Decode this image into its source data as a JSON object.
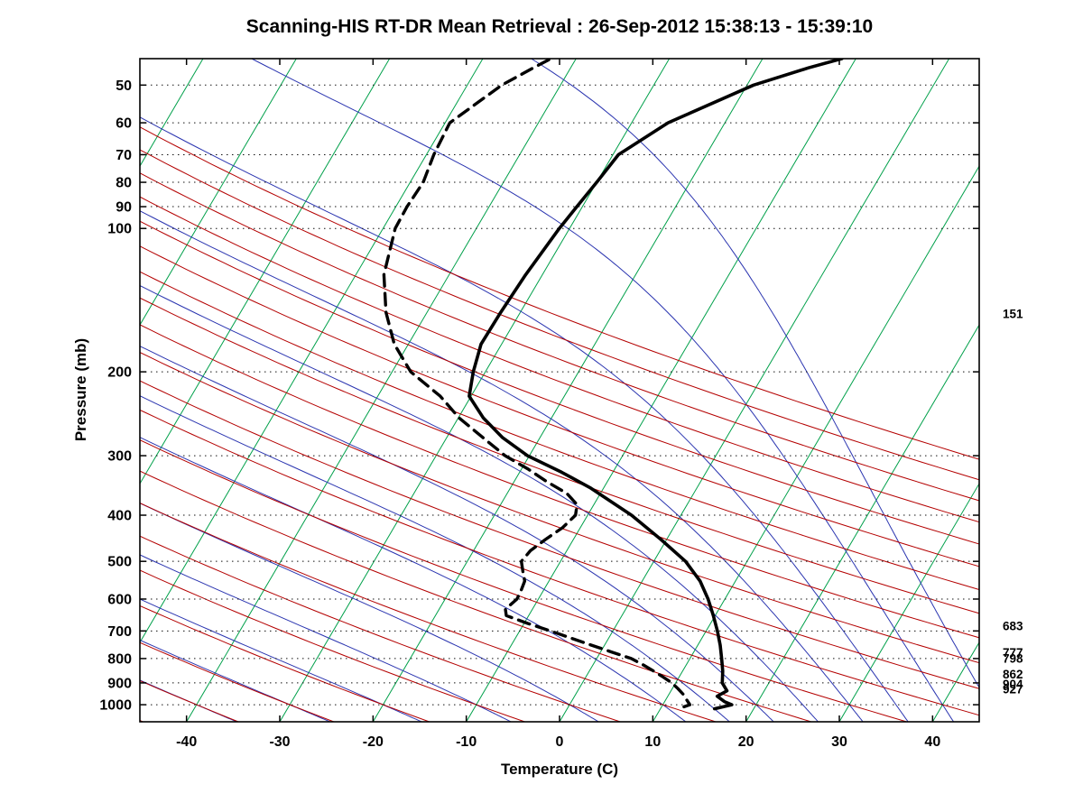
{
  "title": "Scanning-HIS RT-DR Mean Retrieval : 26-Sep-2012 15:38:13 - 15:39:10",
  "chart_data": {
    "type": "line",
    "chart_kind": "skew-t-log-p-sounding",
    "title": "Scanning-HIS RT-DR Mean Retrieval : 26-Sep-2012 15:38:13 - 15:39:10",
    "xlabel": "Temperature (C)",
    "ylabel": "Pressure (mb)",
    "x_ticks": [
      -40,
      -30,
      -20,
      -10,
      0,
      10,
      20,
      30,
      40
    ],
    "pressure_ticks": [
      50,
      60,
      70,
      80,
      90,
      100,
      200,
      300,
      400,
      500,
      600,
      700,
      800,
      900,
      1000
    ],
    "t_range": [
      -45,
      45
    ],
    "p_range": [
      44,
      1086
    ],
    "skew_c_per_decade": 30,
    "grid": "dotted horizontal lines at pressure ticks",
    "background": {
      "isotherms": {
        "color": "#00a04a",
        "min": -90,
        "max": 40,
        "step": 10
      },
      "dry_adiabats": {
        "color": "#b40000",
        "theta_min": -80,
        "theta_max": 150,
        "step": 10
      },
      "moist_adiabats": {
        "color": "#2b35b0",
        "thetaw_values": [
          -80,
          -70,
          -60,
          -50,
          -40,
          -30,
          -20,
          -10,
          0,
          10,
          15,
          20,
          25,
          30,
          35,
          40,
          45
        ]
      }
    },
    "series": [
      {
        "name": "temperature",
        "line": "solid",
        "color": "#000000",
        "width": 3.6,
        "points": [
          [
            1020,
            15.8
          ],
          [
            1000,
            17.4
          ],
          [
            985,
            16.4
          ],
          [
            960,
            15.3
          ],
          [
            935,
            16.0
          ],
          [
            900,
            15.0
          ],
          [
            850,
            14.3
          ],
          [
            800,
            13.4
          ],
          [
            750,
            12.4
          ],
          [
            700,
            11.2
          ],
          [
            650,
            9.8
          ],
          [
            600,
            8.2
          ],
          [
            550,
            6.2
          ],
          [
            500,
            3.4
          ],
          [
            450,
            -0.6
          ],
          [
            400,
            -5.3
          ],
          [
            350,
            -11.5
          ],
          [
            325,
            -15.5
          ],
          [
            300,
            -20.2
          ],
          [
            275,
            -24.0
          ],
          [
            250,
            -27.3
          ],
          [
            225,
            -30.2
          ],
          [
            200,
            -31.3
          ],
          [
            175,
            -32.2
          ],
          [
            150,
            -32.1
          ],
          [
            125,
            -31.8
          ],
          [
            100,
            -31.1
          ],
          [
            90,
            -30.6
          ],
          [
            80,
            -30.0
          ],
          [
            70,
            -29.4
          ],
          [
            60,
            -26.1
          ],
          [
            50,
            -19.3
          ],
          [
            46,
            -14.5
          ],
          [
            44,
            -11.5
          ]
        ]
      },
      {
        "name": "dew_point",
        "line": "dashed",
        "color": "#000000",
        "width": 3.4,
        "points": [
          [
            1010,
            12.4
          ],
          [
            1000,
            12.9
          ],
          [
            975,
            12.2
          ],
          [
            950,
            11.5
          ],
          [
            925,
            10.6
          ],
          [
            900,
            9.6
          ],
          [
            875,
            8.3
          ],
          [
            850,
            6.9
          ],
          [
            825,
            5.4
          ],
          [
            800,
            3.7
          ],
          [
            775,
            1.2
          ],
          [
            750,
            -1.4
          ],
          [
            725,
            -4.0
          ],
          [
            700,
            -6.7
          ],
          [
            675,
            -9.6
          ],
          [
            650,
            -12.4
          ],
          [
            630,
            -12.9
          ],
          [
            600,
            -12.3
          ],
          [
            575,
            -12.4
          ],
          [
            550,
            -12.6
          ],
          [
            525,
            -13.4
          ],
          [
            500,
            -14.2
          ],
          [
            475,
            -13.9
          ],
          [
            450,
            -13.0
          ],
          [
            425,
            -11.9
          ],
          [
            400,
            -11.3
          ],
          [
            380,
            -11.8
          ],
          [
            360,
            -13.6
          ],
          [
            340,
            -16.5
          ],
          [
            320,
            -19.3
          ],
          [
            300,
            -22.6
          ],
          [
            275,
            -26.1
          ],
          [
            250,
            -29.9
          ],
          [
            225,
            -33.3
          ],
          [
            200,
            -38.0
          ],
          [
            175,
            -41.5
          ],
          [
            150,
            -44.4
          ],
          [
            125,
            -47.0
          ],
          [
            100,
            -48.7
          ],
          [
            90,
            -48.8
          ],
          [
            80,
            -48.6
          ],
          [
            70,
            -49.2
          ],
          [
            60,
            -49.5
          ],
          [
            50,
            -46.3
          ],
          [
            46,
            -44.0
          ],
          [
            44,
            -42.7
          ]
        ]
      }
    ],
    "right_edge_labels": [
      {
        "text": "151",
        "pressure": 151
      },
      {
        "text": "683",
        "pressure": 683
      },
      {
        "text": "798",
        "pressure": 798
      },
      {
        "text": "777",
        "pressure": 777
      },
      {
        "text": "927",
        "pressure": 927
      },
      {
        "text": "862",
        "pressure": 862
      },
      {
        "text": "904",
        "pressure": 904
      }
    ]
  }
}
